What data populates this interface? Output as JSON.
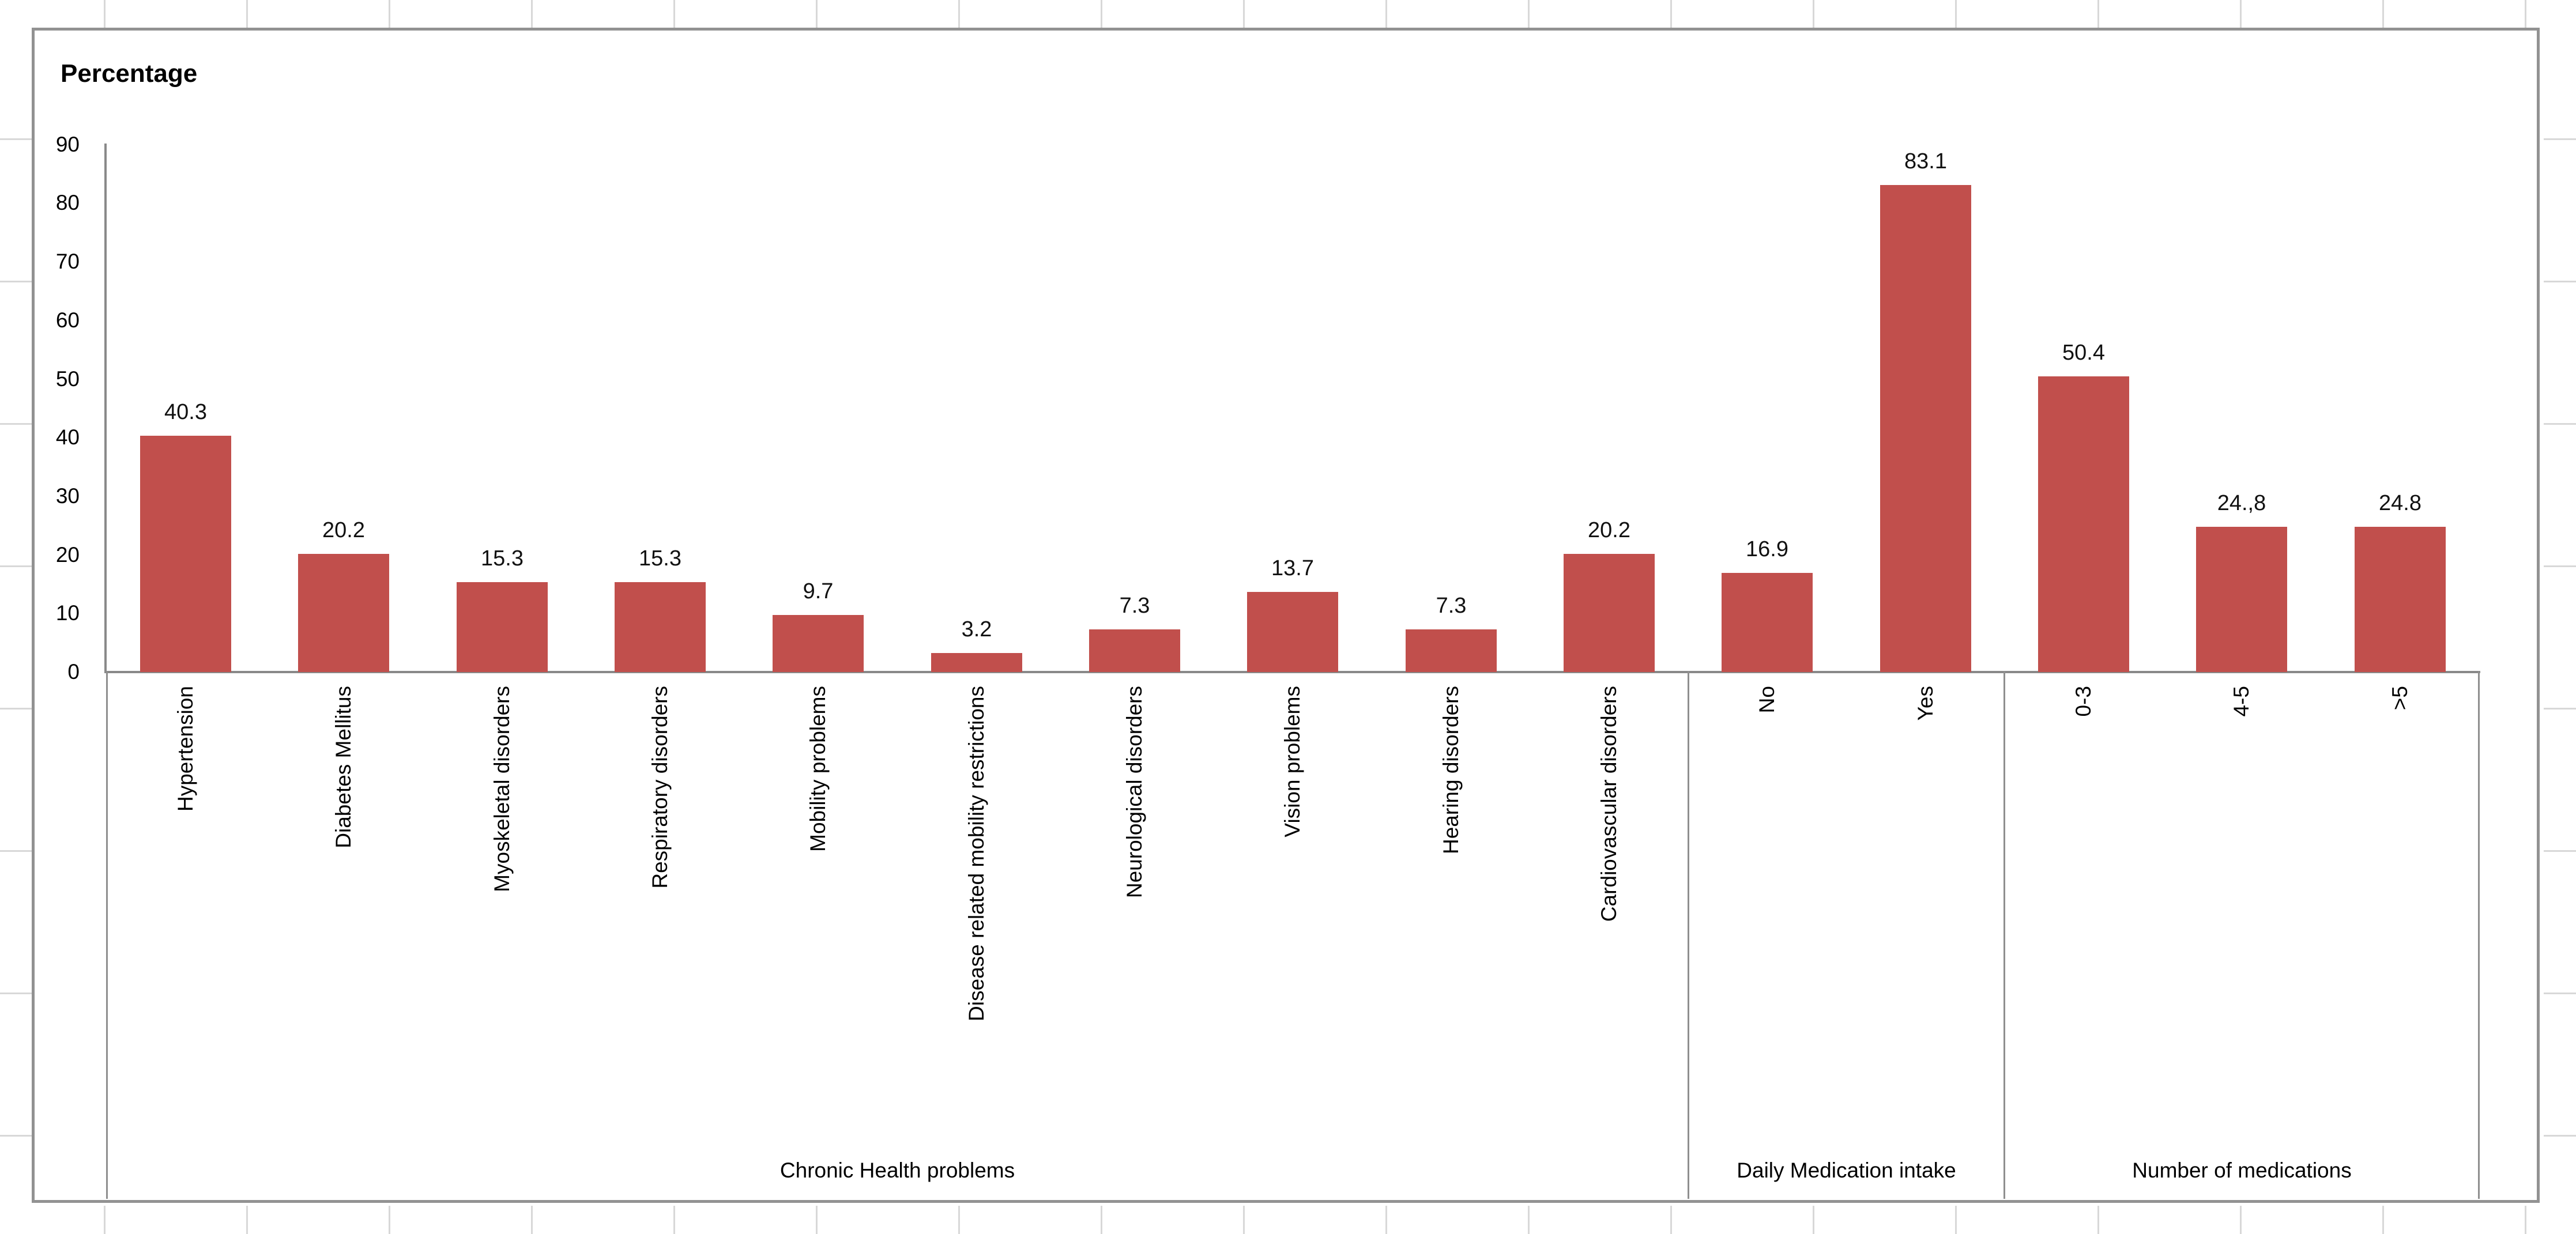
{
  "chart_data": {
    "type": "bar",
    "title": "Percentage",
    "ylabel": "Percentage",
    "ylim": [
      0,
      90
    ],
    "ytick_step": 10,
    "yticks": [
      90,
      80,
      70,
      60,
      50,
      40,
      30,
      20,
      10,
      0
    ],
    "grid": false,
    "legend": false,
    "bar_color": "#C14F4C",
    "axis_color": "#898989",
    "groups": [
      {
        "label": "Chronic Health problems",
        "categories": [
          "Hypertension",
          "Diabetes Mellitus",
          "Myoskeletal disorders",
          "Respiratory disorders",
          "Mobility problems",
          "Disease related mobility restrictions",
          "Neurological disorders",
          "Vision problems",
          "Hearing disorders",
          "Cardiovascular disorders"
        ],
        "values": [
          40.3,
          20.2,
          15.3,
          15.3,
          9.7,
          3.2,
          7.3,
          13.7,
          7.3,
          20.2
        ],
        "value_labels": [
          "40.3",
          "20.2",
          "15.3",
          "15.3",
          "9.7",
          "3.2",
          "7.3",
          "13.7",
          "7.3",
          "20.2"
        ]
      },
      {
        "label": "Daily Medication intake",
        "categories": [
          "No",
          "Yes"
        ],
        "values": [
          16.9,
          83.1
        ],
        "value_labels": [
          "16.9",
          "83.1"
        ]
      },
      {
        "label": "Number of medications",
        "categories": [
          "0-3",
          "4-5",
          ">5"
        ],
        "values": [
          50.4,
          24.8,
          24.8
        ],
        "value_labels": [
          "50.4",
          "24.,8",
          "24.8"
        ]
      }
    ]
  }
}
